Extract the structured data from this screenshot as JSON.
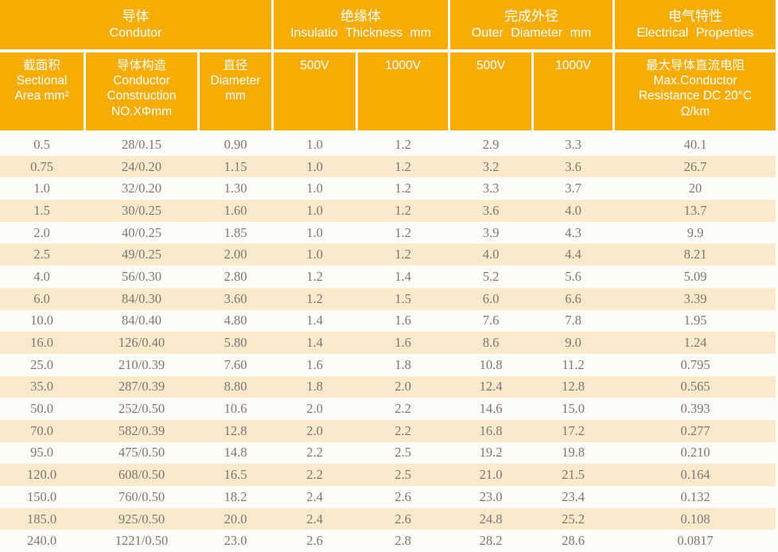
{
  "table": {
    "title_semantic": "Wire specification table",
    "header": {
      "groups": [
        {
          "zh": "导体",
          "en": "Condutor"
        },
        {
          "zh": "绝缘体",
          "en": "Insulatio Thickness mm"
        },
        {
          "zh": "完成外径",
          "en": "Outer Diameter mm"
        },
        {
          "zh": "电气特性",
          "en": "Electrical Properties"
        }
      ],
      "columns": [
        "截面积\nSectional\nArea mm²",
        "导体构造\nConductor\nConstruction\nNO.XΦmm",
        "直径\nDiameter\nmm",
        "500V",
        "1000V",
        "500V",
        "1000V",
        "最大导体直流电阻\nMax.Conductor\nResistance DC 20°C\nΩ/km"
      ],
      "column_names": [
        "sectional-area",
        "conductor-construction",
        "diameter",
        "insulation-thickness-500v",
        "insulation-thickness-1000v",
        "outer-diameter-500v",
        "outer-diameter-1000v",
        "max-dc-resistance"
      ]
    },
    "rows": [
      [
        "0.5",
        "28/0.15",
        "0.90",
        "1.0",
        "1.2",
        "2.9",
        "3.3",
        "40.1"
      ],
      [
        "0.75",
        "24/0.20",
        "1.15",
        "1.0",
        "1.2",
        "3.2",
        "3.6",
        "26.7"
      ],
      [
        "1.0",
        "32/0.20",
        "1.30",
        "1.0",
        "1.2",
        "3.3",
        "3.7",
        "20"
      ],
      [
        "1.5",
        "30/0.25",
        "1.60",
        "1.0",
        "1.2",
        "3.6",
        "4.0",
        "13.7"
      ],
      [
        "2.0",
        "40/0.25",
        "1.85",
        "1.0",
        "1.2",
        "3.9",
        "4.3",
        "9.9"
      ],
      [
        "2.5",
        "49/0.25",
        "2.00",
        "1.0",
        "1.2",
        "4.0",
        "4.4",
        "8.21"
      ],
      [
        "4.0",
        "56/0.30",
        "2.80",
        "1.2",
        "1.4",
        "5.2",
        "5.6",
        "5.09"
      ],
      [
        "6.0",
        "84/0.30",
        "3.60",
        "1.2",
        "1.5",
        "6.0",
        "6.6",
        "3.39"
      ],
      [
        "10.0",
        "84/0.40",
        "4.80",
        "1.4",
        "1.6",
        "7.6",
        "7.8",
        "1.95"
      ],
      [
        "16.0",
        "126/0.40",
        "5.80",
        "1.4",
        "1.6",
        "8.6",
        "9.0",
        "1.24"
      ],
      [
        "25.0",
        "210/0.39",
        "7.60",
        "1.6",
        "1.8",
        "10.8",
        "11.2",
        "0.795"
      ],
      [
        "35.0",
        "287/0.39",
        "8.80",
        "1.8",
        "2.0",
        "12.4",
        "12.8",
        "0.565"
      ],
      [
        "50.0",
        "252/0.50",
        "10.6",
        "2.0",
        "2.2",
        "14.6",
        "15.0",
        "0.393"
      ],
      [
        "70.0",
        "582/0.39",
        "12.8",
        "2.0",
        "2.2",
        "16.8",
        "17.2",
        "0.277"
      ],
      [
        "95.0",
        "475/0.50",
        "14.8",
        "2.2",
        "2.5",
        "19.2",
        "19.8",
        "0.210"
      ],
      [
        "120.0",
        "608/0.50",
        "16.5",
        "2.2",
        "2.5",
        "21.0",
        "21.5",
        "0.164"
      ],
      [
        "150.0",
        "760/0.50",
        "18.2",
        "2.4",
        "2.6",
        "23.0",
        "23.4",
        "0.132"
      ],
      [
        "185.0",
        "925/0.50",
        "20.0",
        "2.4",
        "2.6",
        "24.8",
        "25.2",
        "0.108"
      ],
      [
        "240.0",
        "1221/0.50",
        "23.0",
        "2.6",
        "2.8",
        "28.2",
        "28.6",
        "0.0817"
      ]
    ],
    "colors": {
      "header_bg": "#F6AC00",
      "header_text": "#FFFFFF",
      "stripe_bg": "#FAE9CB",
      "data_text": "#7B7872"
    }
  }
}
